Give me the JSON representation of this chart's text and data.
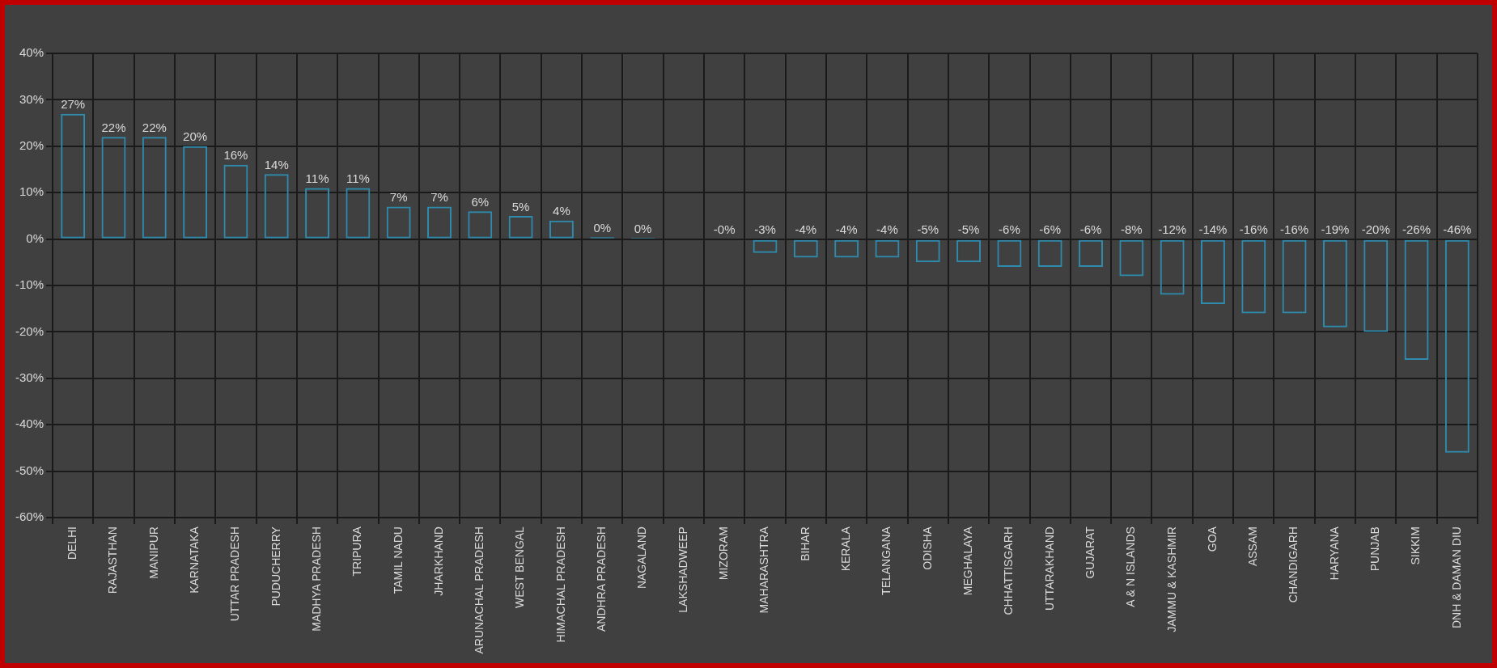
{
  "chart_data": {
    "type": "bar",
    "categories": [
      "DELHI",
      "RAJASTHAN",
      "MANIPUR",
      "KARNATAKA",
      "UTTAR PRADESH",
      "PUDUCHERRY",
      "MADHYA PRADESH",
      "TRIPURA",
      "TAMIL NADU",
      "JHARKHAND",
      "ARUNACHAL PRADESH",
      "WEST BENGAL",
      "HIMACHAL PRADESH",
      "ANDHRA PRADESH",
      "NAGALAND",
      "LAKSHADWEEP",
      "MIZORAM",
      "MAHARASHTRA",
      "BIHAR",
      "KERALA",
      "TELANGANA",
      "ODISHA",
      "MEGHALAYA",
      "CHHATTISGARH",
      "UTTARAKHAND",
      "GUJARAT",
      "A & N ISLANDS",
      "JAMMU & KASHMIR",
      "GOA",
      "ASSAM",
      "CHANDIGARH",
      "HARYANA",
      "PUNJAB",
      "SIKKIM",
      "DNH & DAMAN DIU"
    ],
    "values": [
      27,
      22,
      22,
      20,
      16,
      14,
      11,
      11,
      7,
      7,
      6,
      5,
      4,
      0.4,
      0.3,
      0,
      -0.2,
      -3,
      -4,
      -4,
      -4,
      -5,
      -5,
      -6,
      -6,
      -6,
      -8,
      -12,
      -14,
      -16,
      -16,
      -19,
      -20,
      -26,
      -46
    ],
    "value_labels": [
      "27%",
      "22%",
      "22%",
      "20%",
      "16%",
      "14%",
      "11%",
      "11%",
      "7%",
      "7%",
      "6%",
      "5%",
      "4%",
      "0%",
      "0%",
      null,
      "-0%",
      "-3%",
      "-4%",
      "-4%",
      "-4%",
      "-5%",
      "-5%",
      "-6%",
      "-6%",
      "-6%",
      "-8%",
      "-12%",
      "-14%",
      "-16%",
      "-16%",
      "-19%",
      "-20%",
      "-26%",
      "-46%"
    ],
    "color": "#2e8bad",
    "ylim": [
      -60,
      40
    ],
    "yticks": [
      {
        "value": -60,
        "label": "-60%"
      },
      {
        "value": -50,
        "label": "-50%"
      },
      {
        "value": -40,
        "label": "-40%"
      },
      {
        "value": -30,
        "label": "-30%"
      },
      {
        "value": -20,
        "label": "-20%"
      },
      {
        "value": -10,
        "label": "-10%"
      },
      {
        "value": 0,
        "label": "0%"
      },
      {
        "value": 10,
        "label": "10%"
      },
      {
        "value": 20,
        "label": "20%"
      },
      {
        "value": 30,
        "label": "30%"
      },
      {
        "value": 40,
        "label": "40%"
      }
    ],
    "grid": true
  }
}
